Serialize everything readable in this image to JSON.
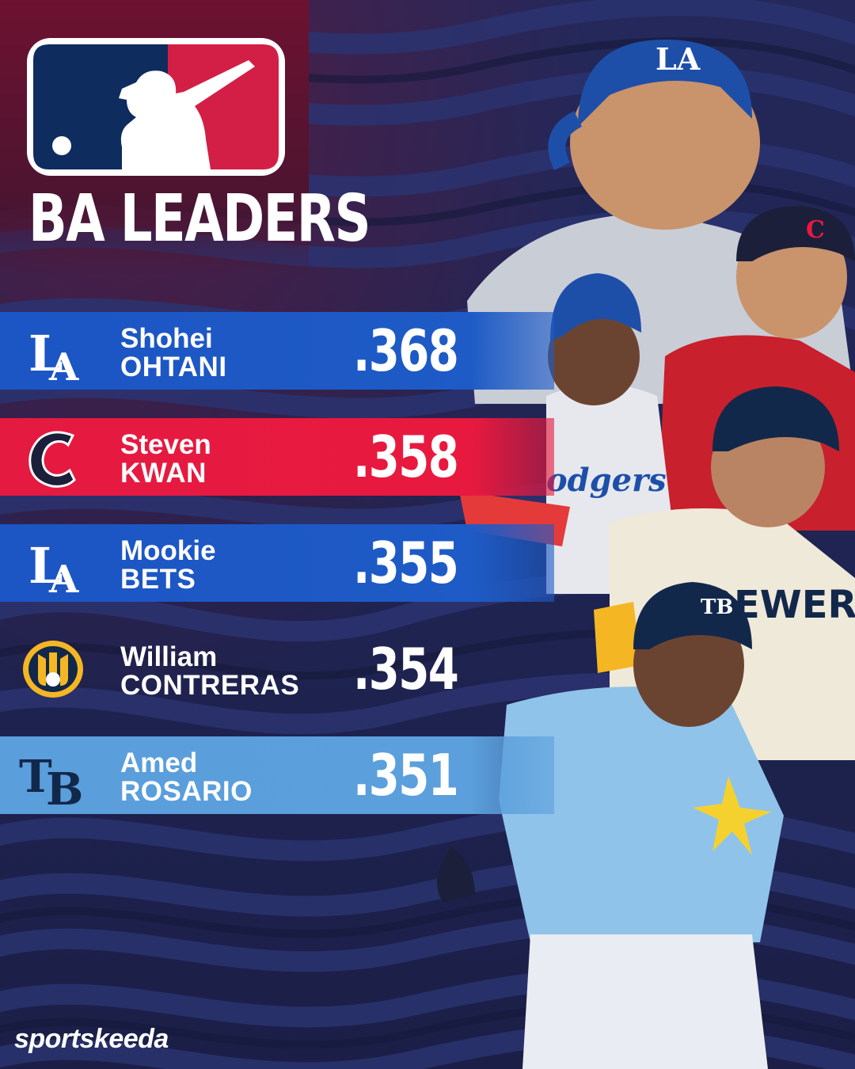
{
  "headline": "BA LEADERS",
  "brand": "sportskeeda",
  "colors": {
    "background": "#1f2452",
    "row_dodgers": "#1e5bc6",
    "row_guardians": "#e8193f",
    "row_brewers": "#1f2452",
    "row_rays": "#5b9fdc"
  },
  "leaders": [
    {
      "team_icon": "dodgers-la-logo",
      "first": "Shohei",
      "last": "OHTANI",
      "avg": ".368"
    },
    {
      "team_icon": "guardians-c-logo",
      "first": "Steven",
      "last": "KWAN",
      "avg": ".358"
    },
    {
      "team_icon": "dodgers-la-logo",
      "first": "Mookie",
      "last": "BETS",
      "avg": ".355"
    },
    {
      "team_icon": "brewers-mitt-logo",
      "first": "William",
      "last": "CONTRERAS",
      "avg": ".354"
    },
    {
      "team_icon": "rays-tb-logo",
      "first": "Amed",
      "last": "ROSARIO",
      "avg": ".351"
    }
  ]
}
